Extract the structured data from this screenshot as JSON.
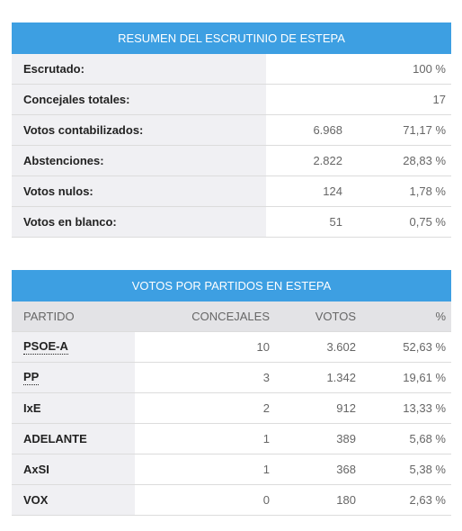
{
  "summary": {
    "title": "RESUMEN DEL ESCRUTINIO DE ESTEPA",
    "rows": [
      {
        "label": "Escrutado:",
        "percent": "100 %"
      },
      {
        "label": "Concejales totales:",
        "percent": "17"
      },
      {
        "label": "Votos contabilizados:",
        "count": "6.968",
        "percent": "71,17 %"
      },
      {
        "label": "Abstenciones:",
        "count": "2.822",
        "percent": "28,83 %"
      },
      {
        "label": "Votos nulos:",
        "count": "124",
        "percent": "1,78 %"
      },
      {
        "label": "Votos en blanco:",
        "count": "51",
        "percent": "0,75 %"
      }
    ]
  },
  "parties": {
    "title": "VOTOS POR PARTIDOS EN ESTEPA",
    "columns": [
      "PARTIDO",
      "CONCEJALES",
      "VOTOS",
      "%"
    ],
    "rows": [
      [
        "PSOE-A",
        "10",
        "3.602",
        "52,63 %"
      ],
      [
        "PP",
        "3",
        "1.342",
        "19,61 %"
      ],
      [
        "IxE",
        "2",
        "912",
        "13,33 %"
      ],
      [
        "ADELANTE",
        "1",
        "389",
        "5,68 %"
      ],
      [
        "AxSI",
        "1",
        "368",
        "5,38 %"
      ],
      [
        "VOX",
        "0",
        "180",
        "2,63 %"
      ]
    ]
  }
}
